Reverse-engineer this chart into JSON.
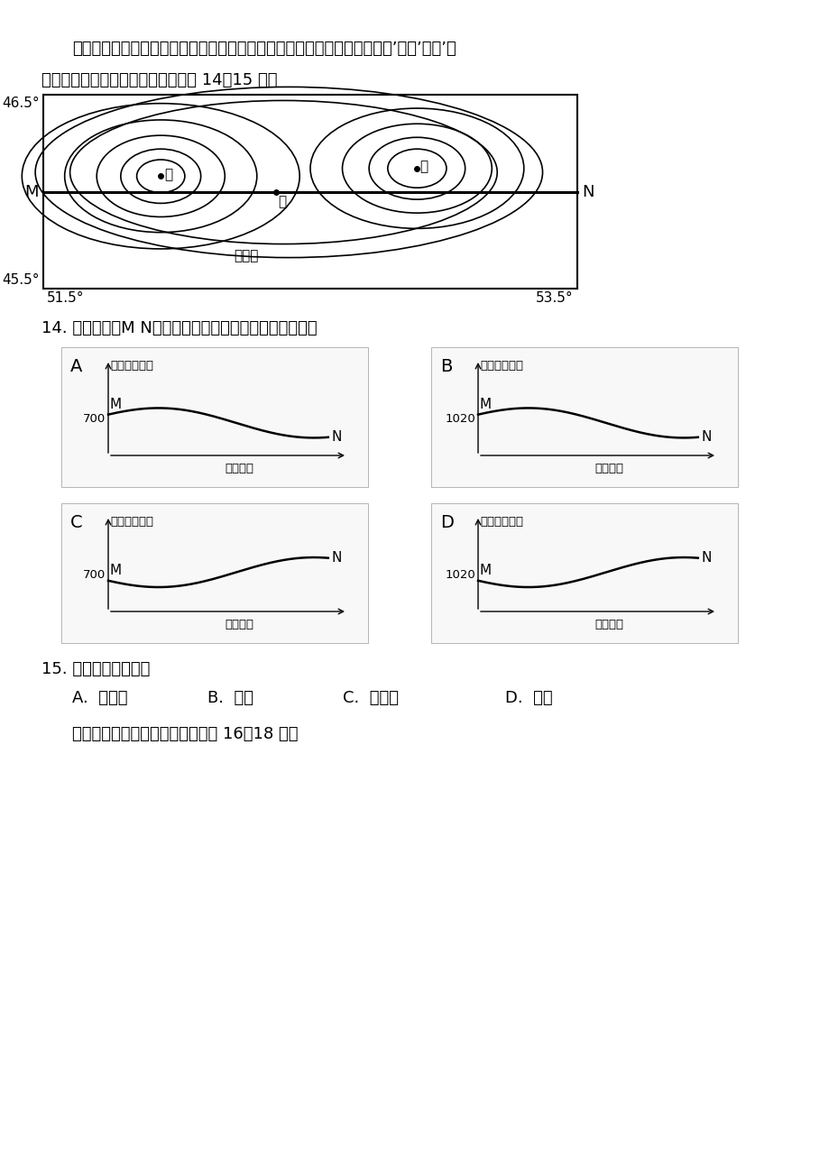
{
  "bg_color": "#ffffff",
  "text_color": "#000000",
  "intro_text1": "读某地高空同一等压面上等高线变化图。甲、乙、丙三地对应的近地面为甲’、乙’、丙’，",
  "intro_text2": "由甲到丙海拔逐渐降低。据图，完成 14～15 题。",
  "q14_text": "14. 最能反映沿M N线对应剖面的近地面气压分布状况的是",
  "q15_text": "15. 此时乙点的风向为",
  "q15_opt_A": "A.  东南风",
  "q15_opt_B": "B.  南风",
  "q15_opt_C": "C.  西北风",
  "q15_opt_D": "D.  北风",
  "q16_text": "读我国某冻土层变化示意图，完成 16～18 题。",
  "map_label_top": "46.5°",
  "map_label_bot": "45.5°",
  "map_label_left_x": "51.5°",
  "map_label_right_x": "53.5°",
  "label_M": "M",
  "label_N": "N",
  "label_jia": "甲",
  "label_yi": "乙",
  "label_bing": "丙",
  "label_dengaoxian": "等高线",
  "panel_ylabel": "气压（百帕）",
  "panel_xlabel": "水平距高",
  "panel_A": "A",
  "panel_B": "B",
  "panel_C": "C",
  "panel_D": "D",
  "panel_yval_700": "700",
  "panel_yval_1020": "1020",
  "panel_Mlabel": "M",
  "panel_Nlabel": "N"
}
